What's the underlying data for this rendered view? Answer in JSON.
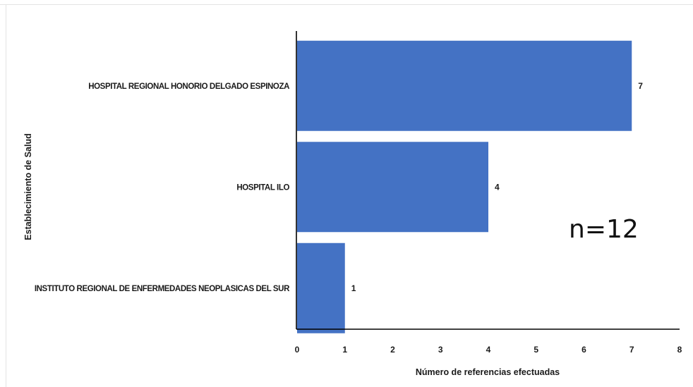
{
  "chart_data": {
    "type": "bar",
    "orientation": "horizontal",
    "categories": [
      "HOSPITAL REGIONAL HONORIO DELGADO ESPINOZA",
      "HOSPITAL ILO",
      "INSTITUTO REGIONAL DE ENFERMEDADES NEOPLASICAS DEL SUR"
    ],
    "values": [
      7,
      4,
      1
    ],
    "data_labels": [
      "7",
      "4",
      "1"
    ],
    "xlabel": "Número de referencias efectuadas",
    "ylabel": "Establecimiento de Salud",
    "xlim": [
      0,
      8
    ],
    "xticks": [
      "0",
      "1",
      "2",
      "3",
      "4",
      "5",
      "6",
      "7",
      "8"
    ],
    "grid": false,
    "bar_color": "#4472c4",
    "annotation": "n=12"
  }
}
